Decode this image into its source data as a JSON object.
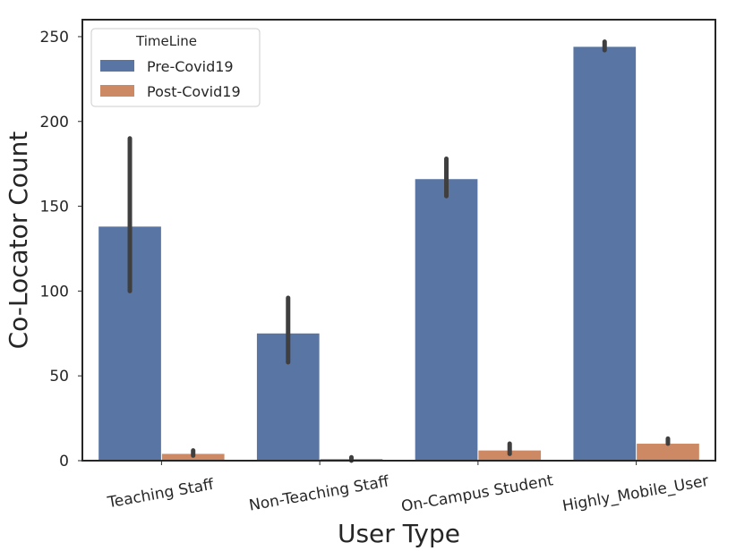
{
  "chart_data": {
    "type": "bar",
    "xlabel": "User Type",
    "ylabel": "Co-Locator Count",
    "ylim": [
      0,
      260
    ],
    "yticks": [
      0,
      50,
      100,
      150,
      200,
      250
    ],
    "ytick_labels": [
      "0",
      "50",
      "100",
      "150",
      "200",
      "250"
    ],
    "categories": [
      "Teaching Staff",
      "Non-Teaching Staff",
      "On-Campus Student",
      "Highly_Mobile_User"
    ],
    "legend": {
      "title": "TimeLine",
      "placement": "upper-left"
    },
    "grid": false,
    "series": [
      {
        "name": "Pre-Covid19",
        "color": "#5875a4",
        "values": [
          138,
          75,
          166,
          244
        ],
        "err_low": [
          100,
          58,
          156,
          242
        ],
        "err_high": [
          190,
          96,
          178,
          247
        ]
      },
      {
        "name": "Post-Covid19",
        "color": "#cc8963",
        "values": [
          4,
          1,
          6,
          10
        ],
        "err_low": [
          3,
          0,
          4,
          10
        ],
        "err_high": [
          6,
          2,
          10,
          13
        ]
      }
    ]
  }
}
